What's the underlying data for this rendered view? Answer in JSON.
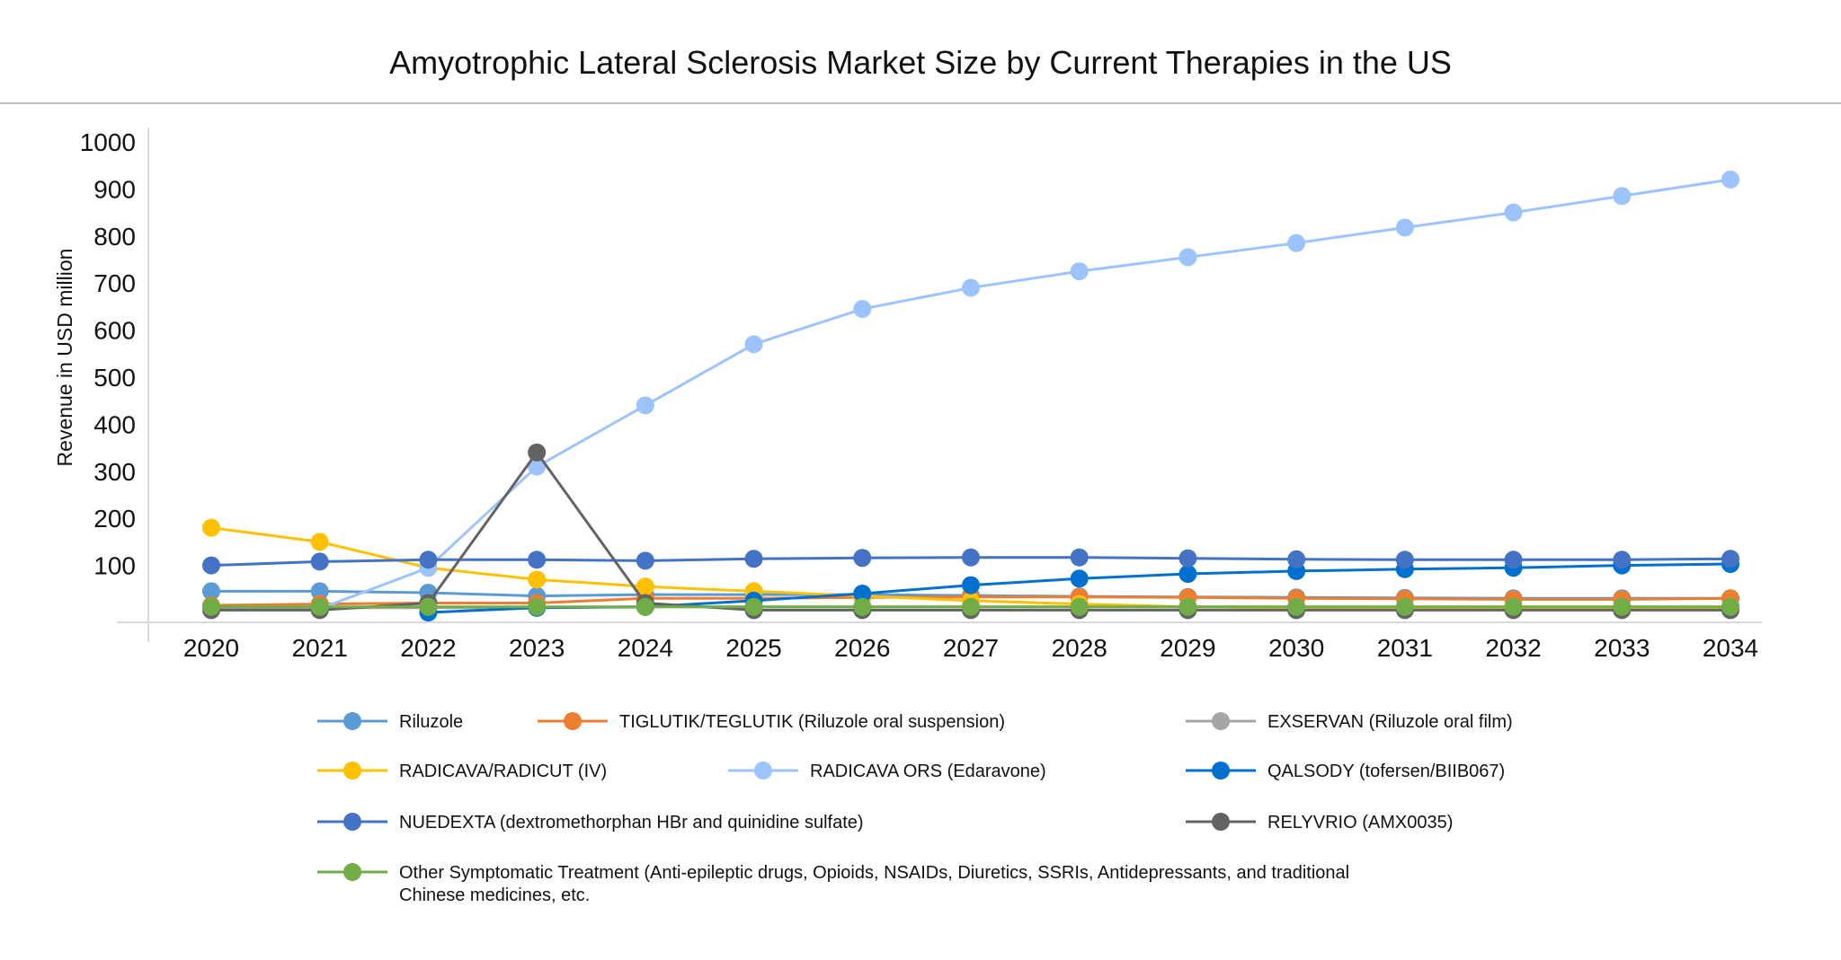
{
  "chart_data": {
    "type": "line",
    "title": "Amyotrophic Lateral Sclerosis Market Size by Current Therapies in the US",
    "xlabel": "",
    "ylabel": "Revenue in USD million",
    "ylim": [
      0,
      1000
    ],
    "yticks": [
      100,
      200,
      300,
      400,
      500,
      600,
      700,
      800,
      900,
      1000
    ],
    "grid": false,
    "legend_position": "bottom",
    "categories": [
      "2020",
      "2021",
      "2022",
      "2023",
      "2024",
      "2025",
      "2026",
      "2027",
      "2028",
      "2029",
      "2030",
      "2031",
      "2032",
      "2033",
      "2034"
    ],
    "series": [
      {
        "name": "Riluzole",
        "color": "#5B9BD5",
        "values": [
          45,
          45,
          42,
          35,
          38,
          38,
          38,
          36,
          34,
          33,
          32,
          31,
          30,
          30,
          30
        ]
      },
      {
        "name": "TIGLUTIK/TEGLUTIK (Riluzole oral suspension)",
        "color": "#ED7D31",
        "values": [
          15,
          18,
          20,
          20,
          30,
          30,
          32,
          33,
          33,
          32,
          30,
          29,
          28,
          28,
          30
        ]
      },
      {
        "name": "EXSERVAN (Riluzole oral film)",
        "color": "#A5A5A5",
        "values": [
          10,
          10,
          10,
          10,
          12,
          12,
          12,
          12,
          12,
          12,
          12,
          12,
          12,
          12,
          12
        ]
      },
      {
        "name": "RADICAVA/RADICUT (IV)",
        "color": "#FFC000",
        "values": [
          180,
          150,
          95,
          70,
          55,
          45,
          35,
          25,
          18,
          12,
          10,
          9,
          8,
          8,
          8
        ]
      },
      {
        "name": "RADICAVA ORS (Edaravone)",
        "color": "#9DC3FF",
        "values": [
          null,
          8,
          95,
          310,
          440,
          570,
          645,
          690,
          725,
          755,
          785,
          818,
          850,
          885,
          920
        ]
      },
      {
        "name": "QALSODY (tofersen/BIIB067)",
        "color": "#0070D0",
        "values": [
          null,
          null,
          0,
          10,
          12,
          25,
          40,
          58,
          72,
          82,
          88,
          92,
          95,
          100,
          103
        ]
      },
      {
        "name": "NUEDEXTA (dextromethorphan HBr and quinidine sulfate)",
        "color": "#4472C4",
        "values": [
          100,
          108,
          112,
          112,
          110,
          114,
          116,
          117,
          117,
          115,
          113,
          112,
          112,
          112,
          114
        ]
      },
      {
        "name": "RELYVRIO (AMX0035)",
        "color": "#636363",
        "values": [
          5,
          5,
          20,
          340,
          20,
          5,
          5,
          5,
          5,
          5,
          5,
          5,
          5,
          5,
          5
        ]
      },
      {
        "name": "Other Symptomatic Treatment (Anti-epileptic drugs, Opioids, NSAIDs, Diuretics, SSRIs, Antidepressants, and traditional Chinese medicines, etc.)",
        "legend_lines": [
          "Other Symptomatic Treatment (Anti-epileptic drugs, Opioids, NSAIDs, Diuretics, SSRIs, Antidepressants, and traditional",
          "Chinese medicines, etc."
        ],
        "color": "#70AD47",
        "values": [
          12,
          12,
          12,
          12,
          12,
          12,
          12,
          12,
          12,
          12,
          12,
          12,
          12,
          12,
          12
        ]
      }
    ]
  }
}
